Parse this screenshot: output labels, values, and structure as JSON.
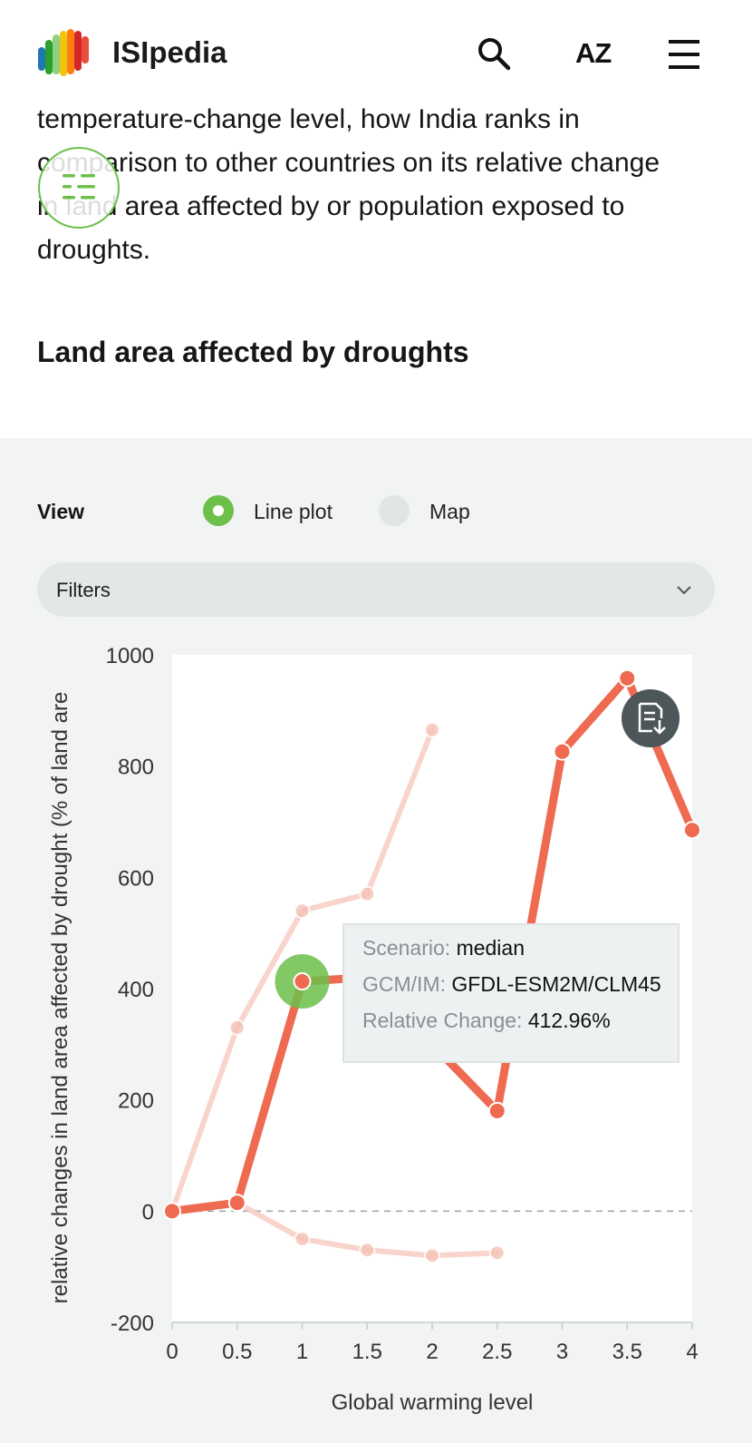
{
  "header": {
    "brand": "ISIpedia",
    "az_label": "AZ",
    "logo_colors": [
      "#1f77b4",
      "#2ca02c",
      "#8cd17d",
      "#f1c40f",
      "#ff7f0e",
      "#d62728",
      "#e74c3c"
    ]
  },
  "intro": {
    "line1": "temperature-change level, how India ranks in",
    "line2": "comparison to other countries on its relative change",
    "line3": "in land area affected by or population exposed to",
    "line4": "droughts."
  },
  "section": {
    "title": "Land area affected by droughts"
  },
  "view": {
    "label": "View",
    "options": [
      {
        "label": "Line plot",
        "selected": true
      },
      {
        "label": "Map",
        "selected": false
      }
    ]
  },
  "filters": {
    "label": "Filters"
  },
  "tooltip": {
    "scenario_key": "Scenario:",
    "scenario_val": "median",
    "gcm_key": "GCM/IM:",
    "gcm_val": "GFDL-ESM2M/CLM45",
    "change_key": "Relative Change:",
    "change_val": "412.96%"
  },
  "colors": {
    "accent_green": "#6cc04a",
    "series_main": "#ee6a50",
    "series_faded": "#f6c2b6",
    "panel_bg": "#f2f4f4"
  },
  "chart_data": {
    "type": "line",
    "title": "",
    "xlabel": "Global warming level",
    "ylabel": "relative changes in land area affected by drought (% of land are",
    "xlim": [
      0,
      4
    ],
    "ylim": [
      -200,
      1000
    ],
    "xticks": [
      "0",
      "0.5",
      "1",
      "1.5",
      "2",
      "2.5",
      "3",
      "3.5",
      "4"
    ],
    "yticks": [
      "1000",
      "800",
      "600",
      "400",
      "200",
      "0",
      "-200"
    ],
    "zero_line": "dashed",
    "series": [
      {
        "highlighted": true,
        "x": [
          0,
          0.5,
          1,
          1.5,
          2.5,
          3,
          3.5,
          4
        ],
        "y": [
          0,
          15,
          413,
          420,
          180,
          826,
          958,
          685
        ]
      },
      {
        "highlighted": false,
        "x": [
          0,
          0.5,
          1,
          1.5,
          2
        ],
        "y": [
          0,
          330,
          540,
          570,
          865
        ]
      },
      {
        "highlighted": false,
        "x": [
          0,
          0.5,
          1,
          1.5,
          2,
          2.5
        ],
        "y": [
          0,
          15,
          -50,
          -70,
          -80,
          -75
        ]
      }
    ],
    "highlight_point": {
      "x": 1,
      "y": 412.96
    }
  }
}
